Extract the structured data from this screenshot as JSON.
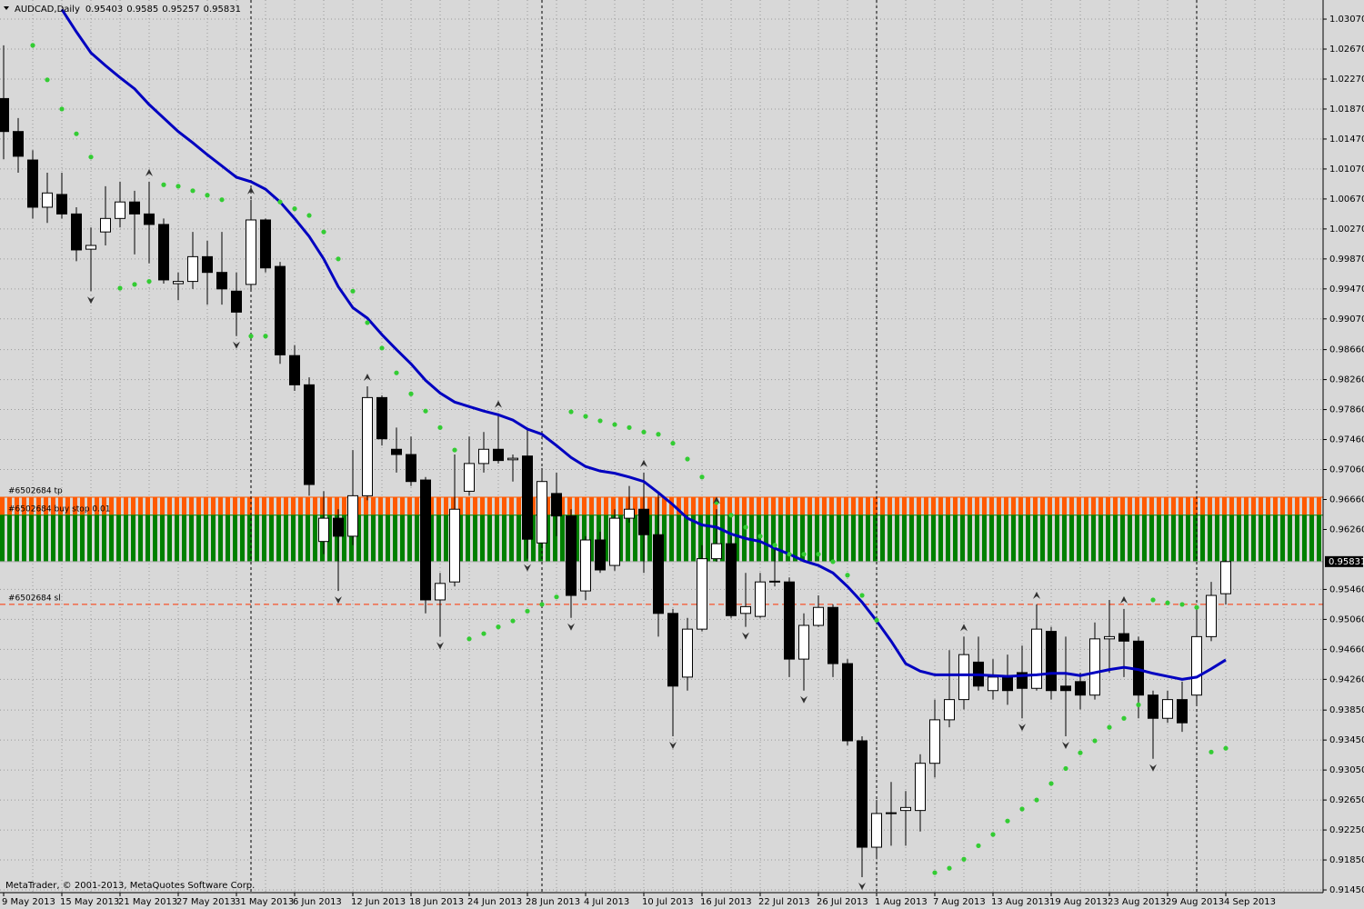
{
  "chart_data": {
    "type": "candlestick",
    "title": "AUDCAD,Daily",
    "copyright": "MetaTrader, © 2001-2013, MetaQuotes Software Corp.",
    "bull_color": "#ffffff",
    "bear_color": "#000000",
    "grid": true,
    "ylim": [
      0.91414,
      1.03325
    ],
    "yticks": [
      {
        "value": 1.0307,
        "label": "1.03070"
      },
      {
        "value": 1.0267,
        "label": "1.02670"
      },
      {
        "value": 1.0227,
        "label": "1.02270"
      },
      {
        "value": 1.0187,
        "label": "1.01870"
      },
      {
        "value": 1.0147,
        "label": "1.01470"
      },
      {
        "value": 1.0107,
        "label": "1.01070"
      },
      {
        "value": 1.0067,
        "label": "1.00670"
      },
      {
        "value": 1.0027,
        "label": "1.00270"
      },
      {
        "value": 0.9987,
        "label": "0.99870"
      },
      {
        "value": 0.9947,
        "label": "0.99470"
      },
      {
        "value": 0.9907,
        "label": "0.99070"
      },
      {
        "value": 0.9866,
        "label": "0.98660"
      },
      {
        "value": 0.9826,
        "label": "0.98260"
      },
      {
        "value": 0.9786,
        "label": "0.97860"
      },
      {
        "value": 0.9746,
        "label": "0.97460"
      },
      {
        "value": 0.9706,
        "label": "0.97060"
      },
      {
        "value": 0.9666,
        "label": "0.96660"
      },
      {
        "value": 0.9626,
        "label": "0.96260"
      },
      {
        "value": 0.9546,
        "label": "0.95460"
      },
      {
        "value": 0.9506,
        "label": "0.95060"
      },
      {
        "value": 0.9466,
        "label": "0.94660"
      },
      {
        "value": 0.9426,
        "label": "0.94260"
      },
      {
        "value": 0.9385,
        "label": "0.93850"
      },
      {
        "value": 0.9345,
        "label": "0.93450"
      },
      {
        "value": 0.9305,
        "label": "0.93050"
      },
      {
        "value": 0.9265,
        "label": "0.92650"
      },
      {
        "value": 0.9225,
        "label": "0.92250"
      },
      {
        "value": 0.9185,
        "label": "0.91850"
      },
      {
        "value": 0.9145,
        "label": "0.91450"
      }
    ],
    "categories": [
      "9 May 2013",
      null,
      null,
      null,
      "15 May 2013",
      null,
      null,
      null,
      "21 May 2013",
      null,
      null,
      null,
      "27 May 2013",
      null,
      null,
      null,
      "31 May 2013",
      null,
      null,
      null,
      "6 Jun 2013",
      null,
      null,
      null,
      "12 Jun 2013",
      null,
      null,
      null,
      "18 Jun 2013",
      null,
      null,
      null,
      "24 Jun 2013",
      null,
      null,
      null,
      "28 Jun 2013",
      null,
      null,
      null,
      "4 Jul 2013",
      null,
      null,
      null,
      "10 Jul 2013",
      null,
      null,
      null,
      "16 Jul 2013",
      null,
      null,
      null,
      "22 Jul 2013",
      null,
      null,
      null,
      "26 Jul 2013",
      null,
      null,
      null,
      "1 Aug 2013",
      null,
      null,
      null,
      "7 Aug 2013",
      null,
      null,
      null,
      "13 Aug 2013",
      null,
      null,
      null,
      "19 Aug 2013",
      null,
      null,
      null,
      "23 Aug 2013",
      null,
      null,
      null,
      "29 Aug 2013",
      null,
      null,
      null,
      "4 Sep 2013"
    ],
    "open": [
      1.0201,
      1.0157,
      1.0119,
      1.0056,
      1.0073,
      1.0047,
      1.0,
      1.0023,
      1.0041,
      1.0063,
      1.0047,
      1.0033,
      0.9954,
      0.9957,
      0.999,
      0.9969,
      0.9944,
      0.9953,
      1.0039,
      0.9977,
      0.9858,
      0.9819,
      0.961,
      0.9641,
      0.9617,
      0.9671,
      0.9802,
      0.9733,
      0.9726,
      0.9692,
      0.9532,
      0.9556,
      0.9677,
      0.9714,
      0.9733,
      0.9719,
      0.9724,
      0.9608,
      0.9674,
      0.9644,
      0.9544,
      0.9612,
      0.9578,
      0.9641,
      0.9653,
      0.9619,
      0.9514,
      0.9429,
      0.9493,
      0.9587,
      0.9607,
      0.9514,
      0.951,
      0.9557,
      0.9556,
      0.9453,
      0.9498,
      0.9522,
      0.9447,
      0.9344,
      0.9202,
      0.9248,
      0.9251,
      0.9251,
      0.9314,
      0.9372,
      0.9399,
      0.9449,
      0.9411,
      0.9429,
      0.9435,
      0.9414,
      0.949,
      0.9417,
      0.9423,
      0.9405,
      0.948,
      0.9487,
      0.9477,
      0.9405,
      0.9374,
      0.9399,
      0.9405,
      0.9483,
      0.95403
    ],
    "high": [
      1.0272,
      1.0175,
      1.0132,
      1.0102,
      1.0102,
      1.0056,
      1.0029,
      1.0084,
      1.009,
      1.0078,
      1.009,
      1.0041,
      0.9969,
      1.0023,
      1.0011,
      1.0023,
      0.9969,
      1.0066,
      1.0041,
      0.9983,
      0.9872,
      0.9829,
      0.9677,
      0.9653,
      0.9732,
      0.9817,
      0.9805,
      0.9762,
      0.975,
      0.9696,
      0.9568,
      0.9726,
      0.975,
      0.9756,
      0.9781,
      0.9726,
      0.9762,
      0.9708,
      0.9702,
      0.9653,
      0.9617,
      0.9623,
      0.9653,
      0.9684,
      0.9702,
      0.9677,
      0.952,
      0.9508,
      0.9605,
      0.9653,
      0.9617,
      0.9568,
      0.9568,
      0.9605,
      0.9562,
      0.9514,
      0.9538,
      0.9526,
      0.9453,
      0.935,
      0.9265,
      0.9289,
      0.9277,
      0.9326,
      0.9399,
      0.9465,
      0.9483,
      0.9483,
      0.9453,
      0.9459,
      0.9471,
      0.9526,
      0.9496,
      0.9483,
      0.9435,
      0.9502,
      0.9532,
      0.952,
      0.9483,
      0.9411,
      0.9411,
      0.9423,
      0.952,
      0.9556,
      0.9585
    ],
    "low": [
      1.012,
      1.0102,
      1.0041,
      1.0035,
      1.0041,
      0.9984,
      0.9944,
      1.0005,
      1.0029,
      0.9993,
      0.9981,
      0.9954,
      0.9932,
      0.9947,
      0.9926,
      0.9926,
      0.9884,
      0.9944,
      0.9969,
      0.9847,
      0.9811,
      0.9671,
      0.9593,
      0.9544,
      0.9605,
      0.9665,
      0.9738,
      0.9702,
      0.9684,
      0.9514,
      0.9483,
      0.955,
      0.9671,
      0.9702,
      0.9714,
      0.969,
      0.9587,
      0.9605,
      0.9617,
      0.9508,
      0.9532,
      0.9568,
      0.9571,
      0.9635,
      0.9568,
      0.9483,
      0.935,
      0.9411,
      0.949,
      0.9583,
      0.9508,
      0.9496,
      0.9508,
      0.955,
      0.9429,
      0.9411,
      0.9496,
      0.9429,
      0.9338,
      0.9162,
      0.9186,
      0.9204,
      0.9204,
      0.9223,
      0.9295,
      0.9362,
      0.9386,
      0.9411,
      0.9399,
      0.9392,
      0.9374,
      0.9411,
      0.9399,
      0.935,
      0.9386,
      0.9399,
      0.9435,
      0.9429,
      0.9374,
      0.932,
      0.9368,
      0.9356,
      0.9392,
      0.9477,
      0.95257
    ],
    "close": [
      1.0157,
      1.0124,
      1.0056,
      1.0075,
      1.0047,
      0.9999,
      1.0005,
      1.0041,
      1.0063,
      1.0047,
      1.0033,
      0.9959,
      0.9957,
      0.999,
      0.9969,
      0.9947,
      0.9916,
      1.0039,
      0.9975,
      0.9859,
      0.9819,
      0.9686,
      0.9641,
      0.9617,
      0.9671,
      0.9802,
      0.9747,
      0.9726,
      0.969,
      0.9532,
      0.9554,
      0.9653,
      0.9714,
      0.9733,
      0.9718,
      0.9721,
      0.9613,
      0.969,
      0.9644,
      0.9538,
      0.9612,
      0.9572,
      0.9641,
      0.9653,
      0.9619,
      0.9514,
      0.9417,
      0.9493,
      0.9587,
      0.9607,
      0.9511,
      0.9523,
      0.9556,
      0.9556,
      0.9453,
      0.9498,
      0.9522,
      0.9447,
      0.9344,
      0.9202,
      0.9247,
      0.9247,
      0.9255,
      0.9314,
      0.9372,
      0.9399,
      0.9459,
      0.9417,
      0.9429,
      0.9411,
      0.9414,
      0.9493,
      0.9411,
      0.9411,
      0.9405,
      0.948,
      0.9483,
      0.9477,
      0.9405,
      0.9374,
      0.9399,
      0.9368,
      0.9483,
      0.9538,
      0.95831
    ],
    "ma": {
      "color": "#0000c0",
      "values": [
        null,
        null,
        null,
        null,
        1.032,
        1.029,
        1.0262,
        1.0245,
        1.0229,
        1.0214,
        1.0193,
        1.0175,
        1.0157,
        1.0142,
        1.0126,
        1.0111,
        1.0096,
        1.009,
        1.008,
        1.0063,
        1.0041,
        1.0017,
        0.9987,
        0.995,
        0.9922,
        0.9908,
        0.9886,
        0.9866,
        0.9847,
        0.9825,
        0.9808,
        0.9796,
        0.979,
        0.9784,
        0.9779,
        0.9772,
        0.976,
        0.9753,
        0.9738,
        0.9722,
        0.971,
        0.9704,
        0.9701,
        0.9696,
        0.969,
        0.9675,
        0.9659,
        0.9641,
        0.9632,
        0.9629,
        0.962,
        0.9614,
        0.961,
        0.9601,
        0.9593,
        0.9584,
        0.9578,
        0.9568,
        0.955,
        0.9529,
        0.9504,
        0.9477,
        0.9447,
        0.9437,
        0.9432,
        0.9432,
        0.9432,
        0.9432,
        0.9431,
        0.943,
        0.9431,
        0.9432,
        0.9434,
        0.9434,
        0.9431,
        0.9435,
        0.9439,
        0.9442,
        0.9439,
        0.9434,
        0.943,
        0.9426,
        0.9429,
        0.944,
        0.9452
      ]
    },
    "sar": {
      "color": "#33cc33",
      "values": [
        null,
        null,
        1.0272,
        1.0226,
        1.0187,
        1.0154,
        1.0123,
        null,
        0.9948,
        0.9953,
        0.9957,
        1.0086,
        1.0084,
        1.0078,
        1.0072,
        1.0066,
        null,
        0.9884,
        0.9884,
        1.0063,
        1.0054,
        1.0045,
        1.0023,
        0.9987,
        0.9944,
        0.9902,
        0.9868,
        0.9835,
        0.9807,
        0.9784,
        0.9762,
        0.9732,
        0.948,
        0.9487,
        0.9496,
        0.9504,
        0.9517,
        0.9526,
        0.9536,
        0.9783,
        0.9777,
        0.9771,
        0.9766,
        0.9762,
        0.9756,
        0.9753,
        0.9741,
        0.972,
        0.9696,
        0.9662,
        0.9645,
        0.9629,
        0.9617,
        0.9605,
        0.9593,
        0.9593,
        0.9593,
        0.9583,
        0.9565,
        0.9538,
        0.9505,
        null,
        null,
        null,
        0.9168,
        0.9174,
        0.9186,
        0.9204,
        0.9219,
        0.9237,
        0.9253,
        0.9265,
        0.9287,
        0.9307,
        0.9328,
        0.9344,
        0.9362,
        0.9374,
        0.9392,
        0.9532,
        0.9528,
        0.9526,
        0.9522,
        0.9329,
        0.9334
      ]
    },
    "fractals_up": [
      null,
      null,
      null,
      null,
      null,
      null,
      null,
      null,
      null,
      null,
      1.009,
      null,
      null,
      null,
      null,
      null,
      null,
      1.0066,
      null,
      null,
      null,
      null,
      null,
      null,
      null,
      0.9817,
      null,
      null,
      null,
      null,
      null,
      null,
      null,
      null,
      0.9781,
      null,
      null,
      null,
      null,
      null,
      null,
      null,
      null,
      null,
      0.9702,
      null,
      null,
      null,
      null,
      0.9653,
      null,
      null,
      null,
      null,
      null,
      null,
      null,
      null,
      null,
      null,
      null,
      null,
      null,
      null,
      null,
      null,
      0.9483,
      null,
      null,
      null,
      null,
      0.9526,
      null,
      null,
      null,
      null,
      null,
      0.952,
      null,
      null,
      null,
      null,
      null,
      null,
      null
    ],
    "fractals_down": [
      null,
      null,
      null,
      null,
      null,
      null,
      0.9944,
      null,
      null,
      null,
      null,
      null,
      null,
      null,
      null,
      null,
      0.9884,
      null,
      null,
      null,
      null,
      null,
      null,
      0.9544,
      null,
      null,
      null,
      null,
      null,
      null,
      0.9483,
      null,
      null,
      null,
      null,
      null,
      0.9587,
      null,
      null,
      0.9508,
      null,
      null,
      null,
      null,
      null,
      null,
      0.935,
      null,
      null,
      null,
      null,
      0.9496,
      null,
      null,
      null,
      0.9411,
      null,
      null,
      null,
      0.9162,
      null,
      null,
      null,
      null,
      null,
      null,
      null,
      null,
      null,
      null,
      0.9374,
      null,
      null,
      0.935,
      null,
      null,
      null,
      null,
      null,
      0.932,
      null,
      null,
      null,
      null,
      null
    ],
    "orders": [
      {
        "label": "#6502684 tp",
        "price": 0.9669,
        "color": "#ff5a00"
      },
      {
        "label": "#6502684 buy stop 0.01",
        "price": 0.9645,
        "color": "#008000"
      },
      {
        "label": "#6502684 sl",
        "price": 0.9526,
        "color": "#ff3300",
        "dashed": true
      }
    ]
  }
}
